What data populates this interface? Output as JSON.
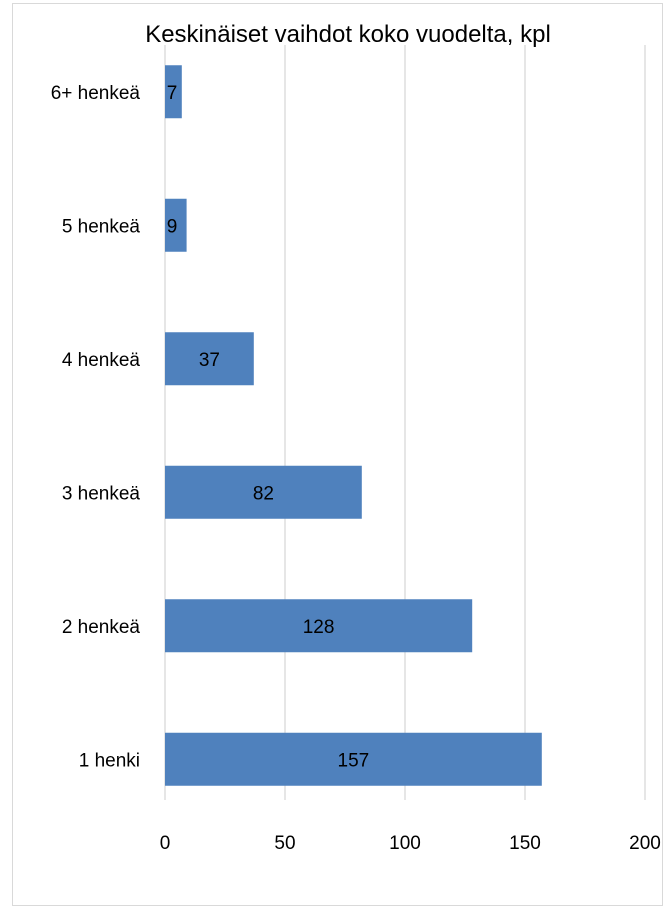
{
  "chart_data": {
    "type": "bar",
    "orientation": "horizontal",
    "title": "Keskinäiset vaihdot koko vuodelta, kpl",
    "categories": [
      "6+ henkeä",
      "5 henkeä",
      "4 henkeä",
      "3 henkeä",
      "2 henkeä",
      "1 henki"
    ],
    "values": [
      7,
      9,
      37,
      82,
      128,
      157
    ],
    "data_labels": [
      "7",
      "9",
      "37",
      "82",
      "128",
      "157"
    ],
    "xlim": [
      0,
      200
    ],
    "xticks": [
      0,
      50,
      100,
      150,
      200
    ],
    "grid": true,
    "legend": "none",
    "bar_color": "#4f81bd",
    "grid_color": "#d9d9d9"
  }
}
